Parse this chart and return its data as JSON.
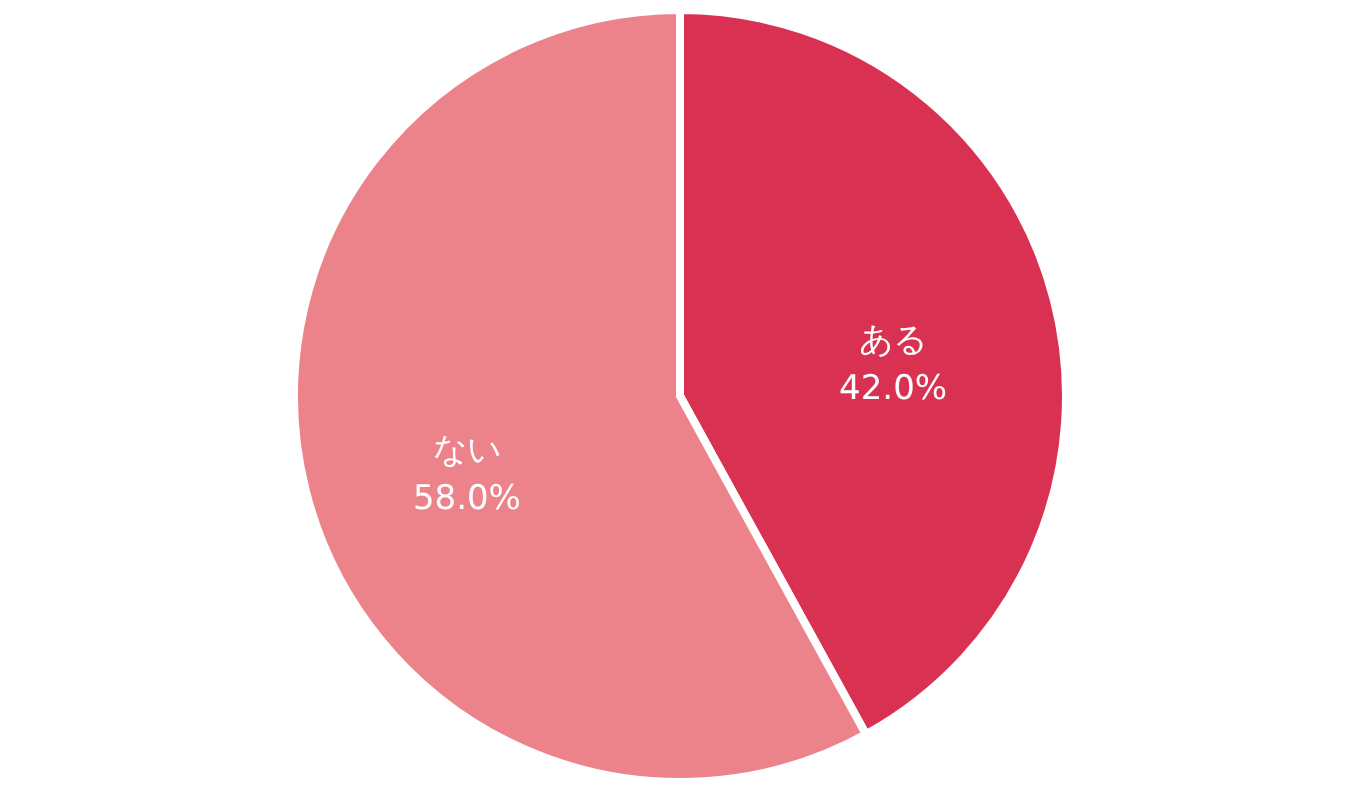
{
  "chart_data": {
    "type": "pie",
    "categories": [
      "ある",
      "ない"
    ],
    "values": [
      42.0,
      58.0
    ],
    "colors": [
      "#d93152",
      "#ec838b"
    ],
    "value_labels": [
      "42.0%",
      "58.0%"
    ],
    "legend": false
  }
}
